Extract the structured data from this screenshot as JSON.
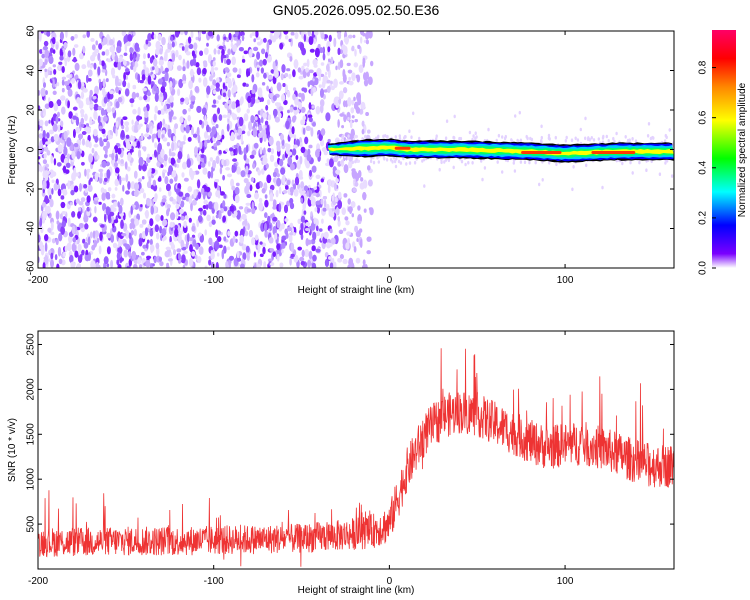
{
  "title": "GN05.2026.095.02.50.E36",
  "chart_data": [
    {
      "type": "heatmap",
      "title": "GN05.2026.095.02.50.E36",
      "xlabel": "Height of straight line (km)",
      "ylabel": "Frequency (Hz)",
      "xlim": [
        -200,
        162
      ],
      "ylim": [
        -60,
        60
      ],
      "x_ticks": [
        "-200",
        "-100",
        "0",
        "100"
      ],
      "y_ticks": [
        "-60",
        "-40",
        "-20",
        "0",
        "20",
        "40",
        "60"
      ],
      "colorbar": {
        "label": "Normalized spectral amplitude",
        "range": [
          0,
          0.95
        ],
        "ticks": [
          "0.0",
          "0.2",
          "0.4",
          "0.6",
          "0.8"
        ],
        "colormap": [
          "#ffffff",
          "#7a00ff",
          "#0000ff",
          "#00ffff",
          "#00ff00",
          "#ffff00",
          "#ff8800",
          "#ff0000",
          "#ff0066"
        ]
      },
      "regions": [
        {
          "name": "noise",
          "x_range": [
            -200,
            -20
          ],
          "freq_range": [
            -60,
            60
          ],
          "amplitude": [
            0.0,
            0.15
          ]
        },
        {
          "name": "signal",
          "x_range": [
            -35,
            162
          ],
          "freq_center": [
            0,
            1,
            0,
            0,
            -1,
            -2,
            -1,
            -1
          ],
          "x_points": [
            -35,
            0,
            10,
            40,
            80,
            100,
            130,
            162
          ],
          "bandwidth_hz": 6,
          "peak_amplitude": 0.9
        }
      ],
      "grid": false
    },
    {
      "type": "line",
      "xlabel": "Height of straight line (km)",
      "ylabel": "SNR (10 * v/v)",
      "xlim": [
        -200,
        162
      ],
      "ylim": [
        0,
        2650
      ],
      "x_ticks": [
        "-200",
        "-100",
        "0",
        "100"
      ],
      "y_ticks": [
        "500",
        "1000",
        "1500",
        "2000",
        "2500"
      ],
      "series": [
        {
          "color": "#ee3333",
          "x": [
            -200,
            -175,
            -150,
            -125,
            -100,
            -75,
            -50,
            -25,
            -10,
            0,
            5,
            10,
            20,
            30,
            40,
            50,
            60,
            70,
            80,
            90,
            100,
            110,
            120,
            130,
            140,
            150,
            162
          ],
          "y": [
            300,
            300,
            310,
            310,
            320,
            330,
            340,
            380,
            420,
            500,
            800,
            1100,
            1500,
            1700,
            1750,
            1720,
            1620,
            1520,
            1420,
            1350,
            1380,
            1400,
            1350,
            1280,
            1200,
            1150,
            1150
          ],
          "noise_amplitude": [
            300,
            300,
            300,
            300,
            300,
            300,
            300,
            320,
            350,
            400,
            450,
            450,
            450,
            450,
            450,
            450,
            450,
            450,
            450,
            450,
            450,
            450,
            450,
            450,
            450,
            450,
            450
          ]
        }
      ],
      "grid": false
    }
  ]
}
